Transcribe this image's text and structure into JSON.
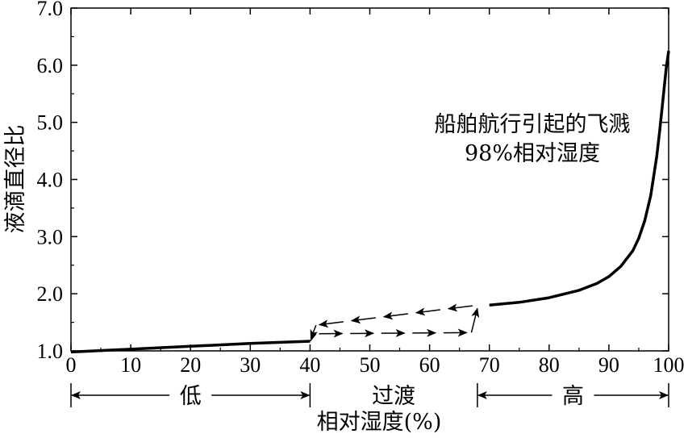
{
  "chart_data": {
    "type": "line",
    "title": "",
    "xlabel": "相对湿度(%)",
    "ylabel": "液滴直径比",
    "xlim": [
      0,
      100
    ],
    "ylim": [
      1.0,
      7.0
    ],
    "x_ticks": [
      "0",
      "10",
      "20",
      "30",
      "40",
      "50",
      "60",
      "70",
      "80",
      "90",
      "100"
    ],
    "y_ticks": [
      "1.0",
      "2.0",
      "3.0",
      "4.0",
      "5.0",
      "6.0",
      "7.0"
    ],
    "grid": false,
    "series": [
      {
        "x": [
          0,
          10,
          20,
          30,
          40,
          70,
          75,
          80,
          85,
          88,
          90,
          92,
          94,
          95,
          96,
          97,
          98,
          98.5,
          99,
          99.3,
          99.6,
          99.8,
          100
        ],
        "y": [
          0.98,
          1.03,
          1.08,
          1.13,
          1.17,
          1.8,
          1.85,
          1.93,
          2.06,
          2.18,
          2.3,
          2.48,
          2.75,
          2.97,
          3.28,
          3.72,
          4.4,
          4.85,
          5.35,
          5.65,
          5.95,
          6.1,
          6.25
        ]
      }
    ],
    "hysteresis": {
      "lower_path": {
        "x": [
          40,
          41,
          67,
          68
        ],
        "y": [
          1.17,
          1.3,
          1.32,
          1.8
        ],
        "direction": "increasing"
      },
      "upper_path": {
        "x": [
          68,
          41,
          40
        ],
        "y": [
          1.8,
          1.45,
          1.17
        ],
        "direction": "decreasing"
      }
    },
    "annotation": [
      "船舶航行引起的飞溅",
      "98%相对湿度"
    ],
    "regions": [
      {
        "label": "低",
        "from": 0,
        "to": 40
      },
      {
        "label": "过渡",
        "from": 40,
        "to": 68
      },
      {
        "label": "高",
        "from": 68,
        "to": 100
      }
    ]
  }
}
